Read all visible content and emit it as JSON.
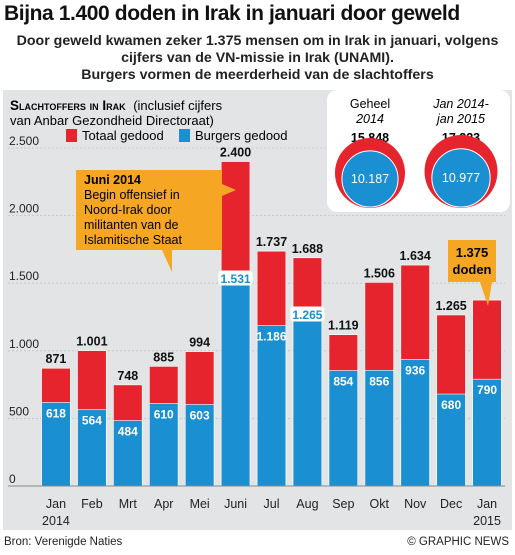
{
  "header": {
    "title": "Bijna 1.400 doden in Irak in januari door geweld",
    "subtitle_lines": [
      "Door geweld kwamen zeker 1.375 mensen om in Irak in januari, volgens",
      "cijfers van de VN-missie in Irak (UNAMI).",
      "Burgers vormen de meerderheid van de slachtoffers"
    ]
  },
  "chart_data": {
    "type": "bar",
    "title_caps": "Slachtoffers in Irak",
    "title_note_1": "(inclusief cijfers",
    "title_note_2": "van Anbar Gezondheid Directoraat)",
    "categories": [
      "Jan",
      "Feb",
      "Mrt",
      "Apr",
      "Mei",
      "Juni",
      "Jul",
      "Aug",
      "Sep",
      "Okt",
      "Nov",
      "Dec",
      "Jan"
    ],
    "category_sublabels": [
      "2014",
      "",
      "",
      "",
      "",
      "",
      "",
      "",
      "",
      "",
      "",
      "",
      "2015"
    ],
    "series": [
      {
        "name": "Totaal gedood",
        "color": "#e6242e",
        "values": [
          871,
          1001,
          748,
          885,
          994,
          2400,
          1737,
          1688,
          1119,
          1506,
          1634,
          1265,
          1375
        ]
      },
      {
        "name": "Burgers gedood",
        "color": "#1a8fd1",
        "values": [
          618,
          564,
          484,
          610,
          603,
          1531,
          1186,
          1265,
          854,
          856,
          936,
          680,
          790
        ]
      }
    ],
    "total_labels": [
      "871",
      "1.001",
      "748",
      "885",
      "994",
      "2.400",
      "1.737",
      "1.688",
      "1.119",
      "1.506",
      "1.634",
      "1.265",
      ""
    ],
    "civilian_labels": [
      "618",
      "564",
      "484",
      "610",
      "603",
      "1.531",
      "1.186",
      "1.265",
      "854",
      "856",
      "936",
      "680",
      "790"
    ],
    "yticks": [
      0,
      500,
      1000,
      1500,
      2000,
      2500
    ],
    "ytick_labels": [
      "0",
      "500",
      "1.000",
      "1.500",
      "2.000",
      "2.500"
    ],
    "ylim": [
      0,
      2500
    ],
    "grid": true,
    "legend_position": "top-left",
    "annotations": {
      "june": {
        "bold": "Juni 2014",
        "lines": [
          "Begin offensief in",
          "Noord-Irak door",
          "militanten van de",
          "Islamitische Staat"
        ]
      },
      "jan2015": {
        "lines": [
          "1.375",
          "doden"
        ]
      }
    },
    "pie_insets": [
      {
        "period_lines": [
          "Geheel",
          "2014"
        ],
        "total": 15848,
        "total_label": "15.848",
        "civilians": 10187,
        "civilians_label": "10.187"
      },
      {
        "period_lines": [
          "Jan 2014-",
          "jan 2015"
        ],
        "total": 17223,
        "total_label": "17.223",
        "civilians": 10977,
        "civilians_label": "10.977"
      }
    ],
    "colors": {
      "total": "#e6242e",
      "civilians": "#1a8fd1",
      "annotation": "#f5a623",
      "panel": "#e3e4e5"
    }
  },
  "footer": {
    "source": "Bron: Verenigde Naties",
    "credit": "© GRAPHIC NEWS"
  }
}
